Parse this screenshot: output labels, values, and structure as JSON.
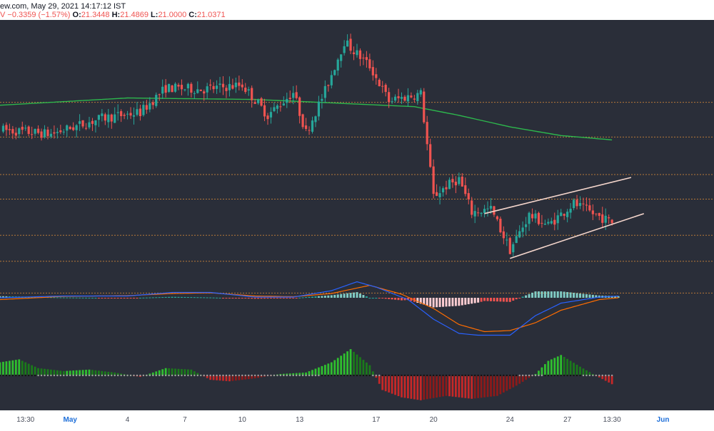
{
  "header": {
    "source": "ew.com, May 29, 2021 14:17:12 IST",
    "change_prefix": "V",
    "change": "−0.3359 (−1.57%)",
    "o_label": "O:",
    "o_value": "21.3448",
    "h_label": "H:",
    "h_value": "21.4869",
    "l_label": "L:",
    "l_value": "21.0000",
    "c_label": "C:",
    "c_value": "21.0371"
  },
  "colors": {
    "panel_bg": "#2a2e39",
    "up": "#26a69a",
    "down": "#ef5350",
    "ma": "#2db84d",
    "hline": "#d98b3a",
    "trendline": "#f5d6cc",
    "macd": "#2962ff",
    "signal": "#ff6d00",
    "osc_up": "#2fbf2f",
    "osc_down": "#c62828"
  },
  "chart_data": [
    {
      "type": "candlestick",
      "x_ticks": [
        "13:30",
        "May",
        "4",
        "7",
        "10",
        "13",
        "17",
        "20",
        "24",
        "27",
        "13:30",
        "Jun"
      ],
      "x_tick_index": [
        4,
        11,
        20,
        29,
        38,
        47,
        59,
        68,
        80,
        89,
        96,
        104
      ],
      "x_range": [
        0,
        112
      ],
      "y_range": [
        17.5,
        35.0
      ],
      "ohlc_keypoints": [
        [
          0,
          27.4
        ],
        [
          8,
          27.1
        ],
        [
          16,
          28.2
        ],
        [
          22,
          28.6
        ],
        [
          26,
          30.3
        ],
        [
          32,
          30.2
        ],
        [
          38,
          30.5
        ],
        [
          42,
          28.4
        ],
        [
          46,
          30.0
        ],
        [
          48,
          27.2
        ],
        [
          51,
          30.1
        ],
        [
          54,
          33.5
        ],
        [
          58,
          31.8
        ],
        [
          61,
          29.4
        ],
        [
          66,
          29.9
        ],
        [
          68,
          22.8
        ],
        [
          70,
          23.5
        ],
        [
          72,
          24.0
        ],
        [
          74,
          21.7
        ],
        [
          77,
          21.9
        ],
        [
          80,
          19.1
        ],
        [
          83,
          21.5
        ],
        [
          86,
          20.8
        ],
        [
          90,
          22.3
        ],
        [
          93,
          21.6
        ],
        [
          96,
          21.0
        ]
      ],
      "horizontal_levels": [
        29.3,
        26.9,
        24.3,
        22.6,
        20.1,
        18.3,
        16.1
      ],
      "moving_average": [
        [
          0,
          29.1
        ],
        [
          20,
          29.6
        ],
        [
          40,
          29.5
        ],
        [
          55,
          29.2
        ],
        [
          65,
          29.0
        ],
        [
          72,
          28.4
        ],
        [
          80,
          27.6
        ],
        [
          88,
          27.0
        ],
        [
          96,
          26.7
        ]
      ],
      "trendlines": [
        {
          "from": [
            76,
            21.6
          ],
          "to": [
            99,
            24.1
          ]
        },
        {
          "from": [
            80,
            18.5
          ],
          "to": [
            101,
            21.6
          ]
        }
      ]
    },
    {
      "type": "macd",
      "y_range": [
        -1.2,
        0.7
      ],
      "macd": [
        [
          0,
          0.0
        ],
        [
          10,
          0.05
        ],
        [
          20,
          0.05
        ],
        [
          27,
          0.15
        ],
        [
          33,
          0.15
        ],
        [
          40,
          0.02
        ],
        [
          46,
          0.02
        ],
        [
          52,
          0.2
        ],
        [
          56,
          0.45
        ],
        [
          59,
          0.3
        ],
        [
          64,
          -0.05
        ],
        [
          68,
          -0.6
        ],
        [
          72,
          -1.0
        ],
        [
          75,
          -1.05
        ],
        [
          80,
          -1.05
        ],
        [
          84,
          -0.5
        ],
        [
          88,
          -0.15
        ],
        [
          94,
          0.02
        ],
        [
          97,
          0.05
        ]
      ],
      "signal": [
        [
          0,
          -0.05
        ],
        [
          10,
          0.04
        ],
        [
          20,
          0.06
        ],
        [
          27,
          0.12
        ],
        [
          33,
          0.14
        ],
        [
          40,
          0.05
        ],
        [
          46,
          0.03
        ],
        [
          52,
          0.12
        ],
        [
          58,
          0.35
        ],
        [
          63,
          0.1
        ],
        [
          68,
          -0.3
        ],
        [
          72,
          -0.75
        ],
        [
          76,
          -0.95
        ],
        [
          80,
          -0.92
        ],
        [
          84,
          -0.7
        ],
        [
          88,
          -0.35
        ],
        [
          94,
          -0.05
        ],
        [
          97,
          0.0
        ]
      ]
    },
    {
      "type": "oscillator_histogram",
      "y_range": [
        -1.0,
        1.0
      ],
      "values": [
        [
          0,
          0.45
        ],
        [
          3,
          0.55
        ],
        [
          6,
          0.25
        ],
        [
          10,
          0.15
        ],
        [
          14,
          0.2
        ],
        [
          18,
          0.1
        ],
        [
          22,
          -0.05
        ],
        [
          26,
          0.25
        ],
        [
          30,
          0.2
        ],
        [
          33,
          -0.15
        ],
        [
          36,
          -0.2
        ],
        [
          40,
          -0.1
        ],
        [
          44,
          0.05
        ],
        [
          48,
          0.1
        ],
        [
          52,
          0.45
        ],
        [
          55,
          0.9
        ],
        [
          58,
          0.35
        ],
        [
          60,
          -0.5
        ],
        [
          63,
          -0.75
        ],
        [
          66,
          -0.85
        ],
        [
          70,
          -0.7
        ],
        [
          74,
          -0.8
        ],
        [
          78,
          -0.7
        ],
        [
          81,
          -0.35
        ],
        [
          84,
          0.05
        ],
        [
          86,
          0.5
        ],
        [
          88,
          0.7
        ],
        [
          91,
          0.3
        ],
        [
          93,
          0.05
        ],
        [
          96,
          -0.3
        ]
      ]
    }
  ]
}
